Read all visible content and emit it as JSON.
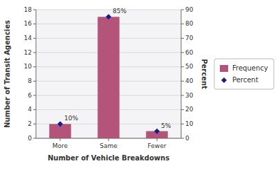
{
  "chart_data": {
    "type": "bar",
    "categories": [
      "More",
      "Same",
      "Fewer"
    ],
    "series": [
      {
        "name": "Frequency",
        "type": "bar",
        "color": "#b5547a",
        "values": [
          2,
          17,
          1
        ]
      },
      {
        "name": "Percent",
        "type": "scatter",
        "axis": "y2",
        "color": "#1a1a8c",
        "marker": "diamond",
        "values": [
          10,
          85,
          5
        ],
        "value_labels": [
          "10%",
          "85%",
          "5%"
        ],
        "data_labels": true
      }
    ],
    "xlabel": "Number of Vehicle Breakdowns",
    "ylabel": "Number of Transit Agencies",
    "y2label": "Percent",
    "ylim": [
      0,
      18
    ],
    "yticks": [
      0,
      2,
      4,
      6,
      8,
      10,
      12,
      14,
      16,
      18
    ],
    "y2lim": [
      0,
      90
    ],
    "y2ticks": [
      0,
      10,
      20,
      30,
      40,
      50,
      60,
      70,
      80,
      90
    ],
    "grid": true,
    "legend": "right"
  }
}
